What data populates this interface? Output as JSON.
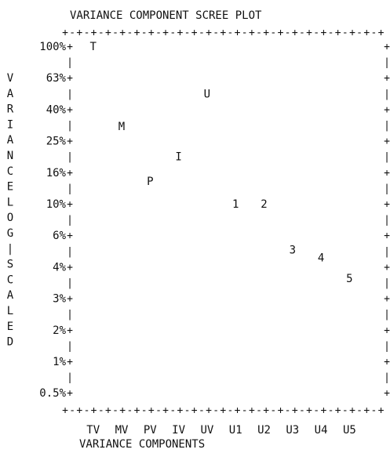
{
  "chart_data": {
    "type": "scatter",
    "title": "VARIANCE COMPONENT SCREE PLOT",
    "xlabel": "VARIANCE COMPONENTS",
    "ylabel": "VARIANCE LOG-SCALED",
    "y_scale": "log",
    "grid": false,
    "categories": [
      "TV",
      "MV",
      "PV",
      "IV",
      "UV",
      "U1",
      "U2",
      "U3",
      "U4",
      "U5"
    ],
    "y_ticks": [
      {
        "label": "100%",
        "value": 100
      },
      {
        "label": "63%",
        "value": 63
      },
      {
        "label": "40%",
        "value": 40
      },
      {
        "label": "25%",
        "value": 25
      },
      {
        "label": "16%",
        "value": 16
      },
      {
        "label": "10%",
        "value": 10
      },
      {
        "label": "6%",
        "value": 6
      },
      {
        "label": "4%",
        "value": 4
      },
      {
        "label": "3%",
        "value": 3
      },
      {
        "label": "2%",
        "value": 2
      },
      {
        "label": "1%",
        "value": 1
      },
      {
        "label": "0.5%",
        "value": 0.5
      }
    ],
    "points": [
      {
        "marker": "T",
        "category": "TV",
        "y": 100
      },
      {
        "marker": "M",
        "category": "MV",
        "y": 31
      },
      {
        "marker": "P",
        "category": "PV",
        "y": 14
      },
      {
        "marker": "I",
        "category": "IV",
        "y": 20
      },
      {
        "marker": "U",
        "category": "UV",
        "y": 50
      },
      {
        "marker": "1",
        "category": "U1",
        "y": 10
      },
      {
        "marker": "2",
        "category": "U2",
        "y": 10
      },
      {
        "marker": "3",
        "category": "U3",
        "y": 5
      },
      {
        "marker": "4",
        "category": "U4",
        "y": 4.5
      },
      {
        "marker": "5",
        "category": "U5",
        "y": 3.6
      }
    ]
  }
}
